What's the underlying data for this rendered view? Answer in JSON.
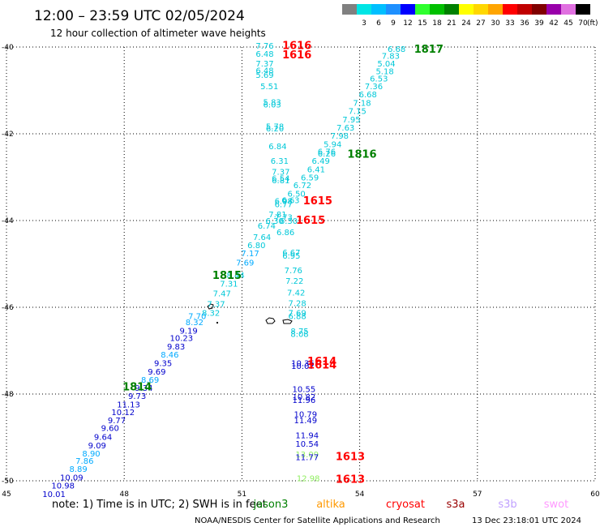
{
  "header": {
    "title": "12:00 – 23:59 UTC 02/05/2024",
    "subtitle": "12 hour collection of altimeter wave heights"
  },
  "legend": {
    "unit": "(ft)",
    "bins": [
      {
        "label": "",
        "color": "#808080"
      },
      {
        "label": "3",
        "color": "#00e5e5"
      },
      {
        "label": "6",
        "color": "#00bfff"
      },
      {
        "label": "9",
        "color": "#1e90ff"
      },
      {
        "label": "12",
        "color": "#0000ff"
      },
      {
        "label": "15",
        "color": "#2eff2e"
      },
      {
        "label": "18",
        "color": "#00c000"
      },
      {
        "label": "21",
        "color": "#008000"
      },
      {
        "label": "24",
        "color": "#ffff00"
      },
      {
        "label": "27",
        "color": "#ffd700"
      },
      {
        "label": "30",
        "color": "#ffa500"
      },
      {
        "label": "33",
        "color": "#ff0000"
      },
      {
        "label": "36",
        "color": "#c00000"
      },
      {
        "label": "39",
        "color": "#800000"
      },
      {
        "label": "42",
        "color": "#9900aa"
      },
      {
        "label": "45",
        "color": "#e070e0"
      },
      {
        "label": "70",
        "color": "#000000"
      }
    ]
  },
  "footer": {
    "note": "note:  1) Time is in UTC; 2) SWH is in feet",
    "satellites": [
      {
        "name": "jason3",
        "color": "#008000"
      },
      {
        "name": "altika",
        "color": "#ff9900"
      },
      {
        "name": "cryosat",
        "color": "#ff0000"
      },
      {
        "name": "s3a",
        "color": "#990000"
      },
      {
        "name": "s3b",
        "color": "#c0a0ff"
      },
      {
        "name": "swot",
        "color": "#ff99ff"
      }
    ],
    "credit": "NOAA/NESDIS Center for Satellite Applications and Research",
    "timestamp": "13 Dec 23:18:01 UTC 2024"
  },
  "chart_data": {
    "type": "scatter",
    "xlim": [
      45,
      60
    ],
    "ylim": [
      -50,
      -40
    ],
    "x_ticks": [
      "45",
      "48",
      "51",
      "54",
      "57",
      "60"
    ],
    "y_ticks": [
      "-40",
      "-42",
      "-44",
      "-46",
      "-48",
      "-50"
    ],
    "grid": true,
    "colors": {
      "A": "#00c8d8",
      "B": "#00aaff",
      "C": "#0000cc",
      "G": "#90ee60"
    },
    "labels": [
      {
        "text": "7.76",
        "x": 51.58,
        "y": -39.96,
        "c": "A"
      },
      {
        "text": "6.48",
        "x": 51.58,
        "y": -40.15,
        "c": "A"
      },
      {
        "text": "7.37",
        "x": 51.58,
        "y": -40.37,
        "c": "A"
      },
      {
        "text": "6.48",
        "x": 51.58,
        "y": -40.53,
        "c": "A"
      },
      {
        "text": "5.69",
        "x": 51.58,
        "y": -40.64,
        "c": "A"
      },
      {
        "text": "5.51",
        "x": 51.7,
        "y": -40.9,
        "c": "A"
      },
      {
        "text": "5.83",
        "x": 51.77,
        "y": -41.26,
        "c": "A"
      },
      {
        "text": "6.03",
        "x": 51.77,
        "y": -41.32,
        "c": "A"
      },
      {
        "text": "5.78",
        "x": 51.84,
        "y": -41.82,
        "c": "A"
      },
      {
        "text": "6.20",
        "x": 51.84,
        "y": -41.87,
        "c": "A"
      },
      {
        "text": "6.84",
        "x": 51.91,
        "y": -42.28,
        "c": "A"
      },
      {
        "text": "6.31",
        "x": 51.96,
        "y": -42.62,
        "c": "A"
      },
      {
        "text": "7.37",
        "x": 51.99,
        "y": -42.87,
        "c": "A"
      },
      {
        "text": "6.54",
        "x": 51.99,
        "y": -43.02,
        "c": "A"
      },
      {
        "text": "6.81",
        "x": 51.99,
        "y": -43.07,
        "c": "A"
      },
      {
        "text": "6.98",
        "x": 52.06,
        "y": -43.54,
        "c": "A"
      },
      {
        "text": "6.63",
        "x": 52.24,
        "y": -43.52,
        "c": "A"
      },
      {
        "text": "6.77",
        "x": 52.06,
        "y": -43.62,
        "c": "A"
      },
      {
        "text": "7.81",
        "x": 51.91,
        "y": -43.85,
        "c": "A"
      },
      {
        "text": "7.73",
        "x": 52.06,
        "y": -43.92,
        "c": "A"
      },
      {
        "text": "6.30",
        "x": 51.83,
        "y": -44.0,
        "c": "A"
      },
      {
        "text": "6.30",
        "x": 52.19,
        "y": -44.0,
        "c": "A"
      },
      {
        "text": "6.74",
        "x": 51.63,
        "y": -44.11,
        "c": "A"
      },
      {
        "text": "6.86",
        "x": 52.11,
        "y": -44.26,
        "c": "A"
      },
      {
        "text": "7.64",
        "x": 51.51,
        "y": -44.37,
        "c": "A"
      },
      {
        "text": "6.80",
        "x": 51.37,
        "y": -44.56,
        "c": "A"
      },
      {
        "text": "7.17",
        "x": 51.21,
        "y": -44.75,
        "c": "B"
      },
      {
        "text": "7.69",
        "x": 51.08,
        "y": -44.96,
        "c": "B"
      },
      {
        "text": "6.67",
        "x": 52.26,
        "y": -44.73,
        "c": "A"
      },
      {
        "text": "6.95",
        "x": 52.26,
        "y": -44.8,
        "c": "A"
      },
      {
        "text": "8.44",
        "x": 50.84,
        "y": -45.25,
        "c": "A"
      },
      {
        "text": "7.76",
        "x": 52.31,
        "y": -45.14,
        "c": "A"
      },
      {
        "text": "7.31",
        "x": 50.67,
        "y": -45.45,
        "c": "A"
      },
      {
        "text": "7.22",
        "x": 52.34,
        "y": -45.38,
        "c": "A"
      },
      {
        "text": "7.47",
        "x": 50.49,
        "y": -45.67,
        "c": "A"
      },
      {
        "text": "7.42",
        "x": 52.38,
        "y": -45.65,
        "c": "A"
      },
      {
        "text": "7.37",
        "x": 50.34,
        "y": -45.92,
        "c": "A"
      },
      {
        "text": "7.28",
        "x": 52.41,
        "y": -45.9,
        "c": "A"
      },
      {
        "text": "8.32",
        "x": 50.21,
        "y": -46.12,
        "c": "A"
      },
      {
        "text": "7.69",
        "x": 52.41,
        "y": -46.12,
        "c": "A"
      },
      {
        "text": "6.88",
        "x": 52.41,
        "y": -46.2,
        "c": "A"
      },
      {
        "text": "7.70",
        "x": 49.86,
        "y": -46.2,
        "c": "B"
      },
      {
        "text": "8.32",
        "x": 49.79,
        "y": -46.34,
        "c": "B"
      },
      {
        "text": "9.19",
        "x": 49.64,
        "y": -46.53,
        "c": "C"
      },
      {
        "text": "10.23",
        "x": 49.46,
        "y": -46.7,
        "c": "C"
      },
      {
        "text": "8.75",
        "x": 52.47,
        "y": -46.54,
        "c": "A"
      },
      {
        "text": "8.08",
        "x": 52.47,
        "y": -46.61,
        "c": "A"
      },
      {
        "text": "9.83",
        "x": 49.32,
        "y": -46.9,
        "c": "C"
      },
      {
        "text": "8.46",
        "x": 49.16,
        "y": -47.08,
        "c": "B"
      },
      {
        "text": "9.35",
        "x": 48.99,
        "y": -47.28,
        "c": "C"
      },
      {
        "text": "10.36",
        "x": 52.55,
        "y": -47.28,
        "c": "C"
      },
      {
        "text": "10.07",
        "x": 52.55,
        "y": -47.35,
        "c": "C"
      },
      {
        "text": "9.69",
        "x": 48.83,
        "y": -47.48,
        "c": "C"
      },
      {
        "text": "8.69",
        "x": 48.66,
        "y": -47.66,
        "c": "B"
      },
      {
        "text": "9.34",
        "x": 48.5,
        "y": -47.85,
        "c": "C"
      },
      {
        "text": "9.73",
        "x": 48.33,
        "y": -48.04,
        "c": "C"
      },
      {
        "text": "10.55",
        "x": 52.58,
        "y": -47.88,
        "c": "C"
      },
      {
        "text": "10.82",
        "x": 52.58,
        "y": -48.06,
        "c": "C"
      },
      {
        "text": "11.96",
        "x": 52.58,
        "y": -48.13,
        "c": "C"
      },
      {
        "text": "11.13",
        "x": 48.11,
        "y": -48.23,
        "c": "C"
      },
      {
        "text": "10.12",
        "x": 47.97,
        "y": -48.41,
        "c": "C"
      },
      {
        "text": "9.77",
        "x": 47.81,
        "y": -48.6,
        "c": "C"
      },
      {
        "text": "10.79",
        "x": 52.62,
        "y": -48.46,
        "c": "C"
      },
      {
        "text": "11.49",
        "x": 52.62,
        "y": -48.6,
        "c": "C"
      },
      {
        "text": "9.60",
        "x": 47.64,
        "y": -48.78,
        "c": "C"
      },
      {
        "text": "9.64",
        "x": 47.46,
        "y": -48.98,
        "c": "C"
      },
      {
        "text": "11.94",
        "x": 52.66,
        "y": -48.94,
        "c": "C"
      },
      {
        "text": "10.54",
        "x": 52.66,
        "y": -49.14,
        "c": "C"
      },
      {
        "text": "9.09",
        "x": 47.31,
        "y": -49.18,
        "c": "C"
      },
      {
        "text": "8.90",
        "x": 47.16,
        "y": -49.36,
        "c": "B"
      },
      {
        "text": "13.09",
        "x": 52.66,
        "y": -49.38,
        "c": "G"
      },
      {
        "text": "11.77",
        "x": 52.66,
        "y": -49.45,
        "c": "C"
      },
      {
        "text": "7.86",
        "x": 46.99,
        "y": -49.53,
        "c": "B"
      },
      {
        "text": "8.89",
        "x": 46.83,
        "y": -49.72,
        "c": "B"
      },
      {
        "text": "10.09",
        "x": 46.66,
        "y": -49.92,
        "c": "C"
      },
      {
        "text": "12.98",
        "x": 52.69,
        "y": -49.93,
        "c": "G"
      },
      {
        "text": "10.98",
        "x": 46.44,
        "y": -50.1,
        "c": "C"
      },
      {
        "text": "10.01",
        "x": 46.21,
        "y": -50.3,
        "c": "C"
      },
      {
        "text": "6.68",
        "x": 54.94,
        "y": -40.04,
        "c": "A"
      },
      {
        "text": "7.83",
        "x": 54.79,
        "y": -40.2,
        "c": "A"
      },
      {
        "text": "5.04",
        "x": 54.68,
        "y": -40.37,
        "c": "A"
      },
      {
        "text": "5.18",
        "x": 54.64,
        "y": -40.55,
        "c": "A"
      },
      {
        "text": "6.53",
        "x": 54.49,
        "y": -40.72,
        "c": "A"
      },
      {
        "text": "7.36",
        "x": 54.36,
        "y": -40.9,
        "c": "A"
      },
      {
        "text": "6.68",
        "x": 54.21,
        "y": -41.08,
        "c": "A"
      },
      {
        "text": "7.18",
        "x": 54.06,
        "y": -41.28,
        "c": "A"
      },
      {
        "text": "7.15",
        "x": 53.94,
        "y": -41.47,
        "c": "A"
      },
      {
        "text": "7.95",
        "x": 53.79,
        "y": -41.66,
        "c": "A"
      },
      {
        "text": "7.63",
        "x": 53.64,
        "y": -41.85,
        "c": "A"
      },
      {
        "text": "7.98",
        "x": 53.49,
        "y": -42.04,
        "c": "A"
      },
      {
        "text": "5.94",
        "x": 53.31,
        "y": -42.23,
        "c": "A"
      },
      {
        "text": "6.76",
        "x": 53.16,
        "y": -42.4,
        "c": "A"
      },
      {
        "text": "6.26",
        "x": 53.16,
        "y": -42.45,
        "c": "A"
      },
      {
        "text": "6.49",
        "x": 53.01,
        "y": -42.62,
        "c": "A"
      },
      {
        "text": "6.41",
        "x": 52.89,
        "y": -42.81,
        "c": "A"
      },
      {
        "text": "6.59",
        "x": 52.73,
        "y": -43.0,
        "c": "A"
      },
      {
        "text": "6.72",
        "x": 52.54,
        "y": -43.18,
        "c": "A"
      },
      {
        "text": "6.50",
        "x": 52.39,
        "y": -43.37,
        "c": "A"
      }
    ],
    "pass_labels": [
      {
        "text": "1616",
        "x": 52.4,
        "y": -39.95,
        "color": "#ff0000"
      },
      {
        "text": "1616",
        "x": 52.4,
        "y": -40.17,
        "color": "#ff0000"
      },
      {
        "text": "1817",
        "x": 55.76,
        "y": -40.04,
        "color": "#008000"
      },
      {
        "text": "1816",
        "x": 54.06,
        "y": -42.46,
        "color": "#008000"
      },
      {
        "text": "1615",
        "x": 52.93,
        "y": -43.53,
        "color": "#ff0000"
      },
      {
        "text": "1615",
        "x": 52.75,
        "y": -43.98,
        "color": "#ff0000"
      },
      {
        "text": "1815",
        "x": 50.62,
        "y": -45.25,
        "color": "#008000"
      },
      {
        "text": "1614",
        "x": 53.04,
        "y": -47.23,
        "color": "#ff0000"
      },
      {
        "text": "1614",
        "x": 53.04,
        "y": -47.32,
        "color": "#ff0000"
      },
      {
        "text": "1814",
        "x": 48.33,
        "y": -47.82,
        "color": "#008000"
      },
      {
        "text": "1613",
        "x": 53.76,
        "y": -49.43,
        "color": "#ff0000"
      },
      {
        "text": "1613",
        "x": 53.76,
        "y": -49.95,
        "color": "#ff0000"
      }
    ]
  }
}
